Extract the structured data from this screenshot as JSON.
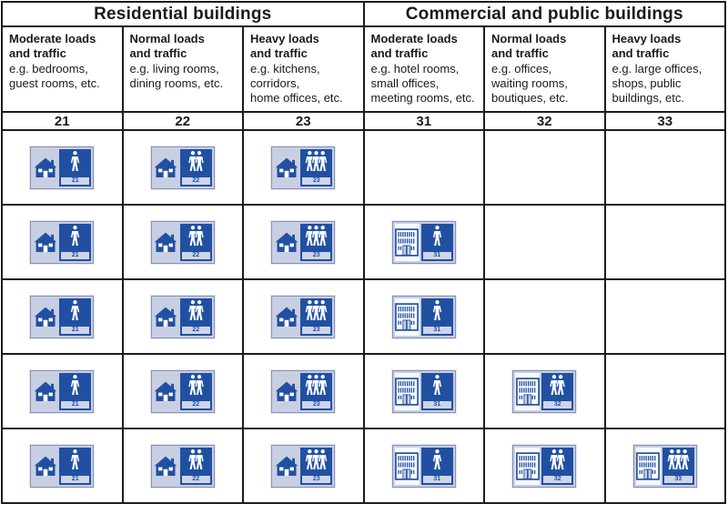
{
  "header_groups": [
    {
      "label": "Residential buildings"
    },
    {
      "label": "Commercial and public buildings"
    }
  ],
  "columns": [
    {
      "group": 0,
      "title": "Moderate loads\nand traffic",
      "examples": "e.g. bedrooms,\nguest rooms, etc.",
      "code": "21",
      "building": "house",
      "persons": 1,
      "icon": "house-1-person"
    },
    {
      "group": 0,
      "title": "Normal loads\nand traffic",
      "examples": "e.g. living rooms,\ndining rooms, etc.",
      "code": "22",
      "building": "house",
      "persons": 2,
      "icon": "house-2-persons"
    },
    {
      "group": 0,
      "title": "Heavy loads\nand traffic",
      "examples": "e.g. kitchens,\ncorridors,\nhome offices, etc.",
      "code": "23",
      "building": "house",
      "persons": 3,
      "icon": "house-3-persons"
    },
    {
      "group": 1,
      "title": "Moderate loads\nand traffic",
      "examples": "e.g. hotel rooms,\nsmall offices,\nmeeting rooms, etc.",
      "code": "31",
      "building": "building",
      "persons": 1,
      "icon": "office-1-person"
    },
    {
      "group": 1,
      "title": "Normal loads\nand traffic",
      "examples": "e.g. offices,\nwaiting rooms,\nboutiques, etc.",
      "code": "32",
      "building": "building",
      "persons": 2,
      "icon": "office-2-persons"
    },
    {
      "group": 1,
      "title": "Heavy loads\nand traffic",
      "examples": "e.g. large offices,\nshops, public\nbuildings, etc.",
      "code": "33",
      "building": "building",
      "persons": 3,
      "icon": "office-3-persons"
    }
  ],
  "grid_rows": [
    [
      true,
      true,
      true,
      false,
      false,
      false
    ],
    [
      true,
      true,
      true,
      true,
      false,
      false
    ],
    [
      true,
      true,
      true,
      true,
      false,
      false
    ],
    [
      true,
      true,
      true,
      true,
      true,
      false
    ],
    [
      true,
      true,
      true,
      true,
      true,
      true
    ]
  ],
  "colors": {
    "icon_blue": "#2150a2",
    "icon_panel_light": "#c9cfe3",
    "icon_panel_white": "#f7f9fd",
    "grid_line": "#1c1c1c"
  }
}
